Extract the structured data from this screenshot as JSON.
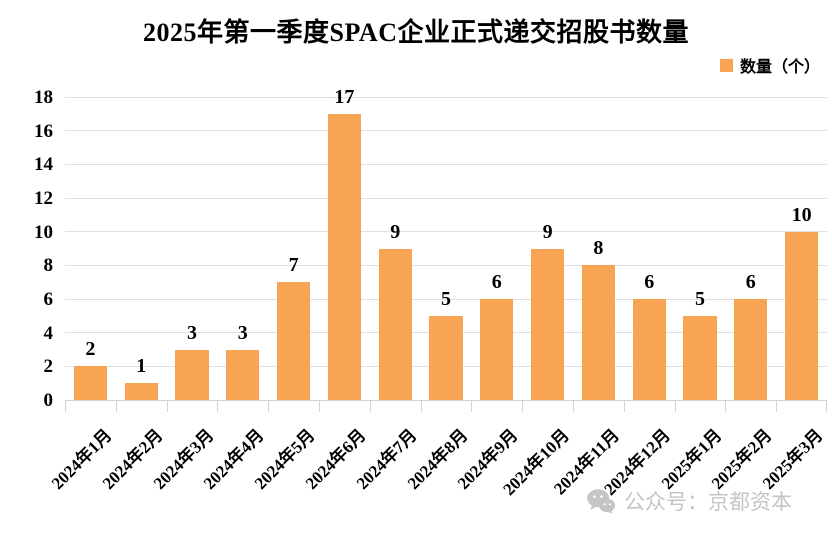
{
  "title": "2025年第一季度SPAC企业正式递交招股书数量",
  "legend": {
    "label": "数量（个）"
  },
  "watermark": {
    "icon": "wechat-icon",
    "text": "公众号：京都资本"
  },
  "colors": {
    "bar": "#F7A454",
    "gridline": "#E0E0E0",
    "axis": "#D2D2D2",
    "text": "#000000",
    "watermark": "#C5C5C5",
    "background": "#FFFFFF"
  },
  "chart_data": {
    "type": "bar",
    "title": "2025年第一季度SPAC企业正式递交招股书数量",
    "categories": [
      "2024年1月",
      "2024年2月",
      "2024年3月",
      "2024年4月",
      "2024年5月",
      "2024年6月",
      "2024年7月",
      "2024年8月",
      "2024年9月",
      "2024年10月",
      "2024年11月",
      "2024年12月",
      "2025年1月",
      "2025年2月",
      "2025年3月"
    ],
    "values": [
      2,
      1,
      3,
      3,
      7,
      17,
      9,
      5,
      6,
      9,
      8,
      6,
      5,
      6,
      10
    ],
    "series": [
      {
        "name": "数量（个）",
        "values": [
          2,
          1,
          3,
          3,
          7,
          17,
          9,
          5,
          6,
          9,
          8,
          6,
          5,
          6,
          10
        ]
      }
    ],
    "xlabel": "",
    "ylabel": "数量（个）",
    "ylim": [
      0,
      18
    ],
    "yticks": [
      0,
      2,
      4,
      6,
      8,
      10,
      12,
      14,
      16,
      18
    ],
    "grid": "horizontal",
    "legend_position": "top-right",
    "data_labels": true,
    "x_label_rotation_deg": -45
  }
}
